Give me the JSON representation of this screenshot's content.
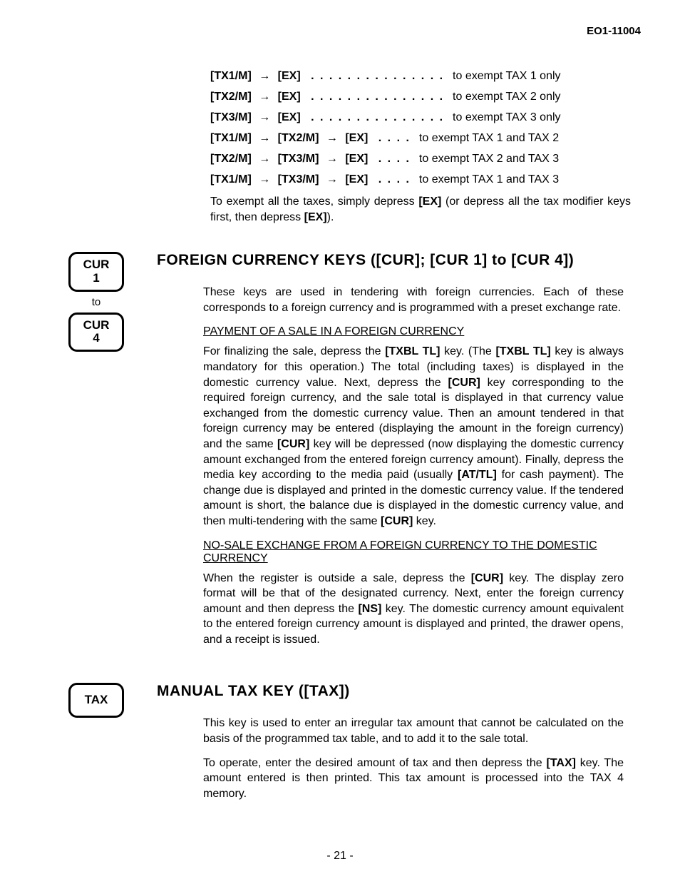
{
  "doc_number": "EO1-11004",
  "tax_sequences": [
    {
      "keys": "[TX1/M]",
      "keys2": "",
      "target": "[EX]",
      "dots": ". . . . . . . . . . . . . . .",
      "desc": "to exempt TAX 1 only"
    },
    {
      "keys": "[TX2/M]",
      "keys2": "",
      "target": "[EX]",
      "dots": ". . . . . . . . . . . . . . .",
      "desc": "to exempt TAX 2 only"
    },
    {
      "keys": "[TX3/M]",
      "keys2": "",
      "target": "[EX]",
      "dots": ". . . . . . . . . . . . . . .",
      "desc": "to exempt TAX 3 only"
    },
    {
      "keys": "[TX1/M]",
      "keys2": "[TX2/M]",
      "target": "[EX]",
      "dots": ". . . .",
      "desc": "to exempt TAX 1 and TAX 2"
    },
    {
      "keys": "[TX2/M]",
      "keys2": "[TX3/M]",
      "target": "[EX]",
      "dots": ". . . .",
      "desc": "to exempt TAX 2 and TAX 3"
    },
    {
      "keys": "[TX1/M]",
      "keys2": "[TX3/M]",
      "target": "[EX]",
      "dots": ". . . .",
      "desc": "to exempt TAX 1 and TAX 3"
    }
  ],
  "exempt_note_1": "To exempt all the taxes, simply depress ",
  "exempt_note_bold1": "[EX]",
  "exempt_note_2": " (or depress all the tax modifier keys first, then depress ",
  "exempt_note_bold2": "[EX]",
  "exempt_note_3": ").",
  "cur": {
    "key1_line1": "CUR",
    "key1_line2": "1",
    "to": "to",
    "key2_line1": "CUR",
    "key2_line2": "4",
    "title": "FOREIGN CURRENCY KEYS ([CUR]; [CUR 1] to [CUR 4])",
    "intro": "These keys are used in tendering with foreign currencies.   Each of these corresponds to a foreign currency and is programmed with a preset exchange rate.",
    "sub1": "PAYMENT OF A SALE IN A FOREIGN CURRENCY",
    "p1": "For finalizing the sale, depress the [TXBL TL] key.  (The [TXBL TL] key is always mandatory for this operation.)   The total (including taxes) is displayed in the domestic currency value.  Next, depress the [CUR] key corresponding to the required foreign currency, and the sale total is displayed in that currency value exchanged from the domestic currency value.   Then an amount tendered in that foreign currency may be entered (displaying the amount in the foreign currency) and the same [CUR] key will be depressed (now displaying the domestic currency amount exchanged from the entered foreign currency amount).  Finally, depress the media key according to the media paid (usually [AT/TL] for cash payment).  The change due is displayed and printed in the domestic currency value.  If the tendered amount is short, the balance due is displayed in the domestic currency value, and then multi-tendering with the same [CUR] key.",
    "sub2": "NO-SALE EXCHANGE FROM A FOREIGN CURRENCY TO THE DOMESTIC CURRENCY",
    "p2": "When the register is outside a sale, depress the [CUR] key.  The display zero format will be that of the designated currency.   Next, enter the foreign currency amount and then depress the [NS] key.   The domestic currency amount equivalent to the entered foreign currency amount is displayed and printed, the drawer opens, and a receipt is issued."
  },
  "tax": {
    "keylabel": "TAX",
    "title": "MANUAL TAX KEY ([TAX])",
    "p1": "This key is used to enter an irregular tax amount that cannot be calculated on the basis of the programmed tax table, and to add it to the sale total.",
    "p2": "To operate, enter the desired amount of tax and then depress the [TAX] key. The amount entered is then printed.   This tax amount is processed into the TAX 4 memory."
  },
  "page_number": "- 21 -"
}
